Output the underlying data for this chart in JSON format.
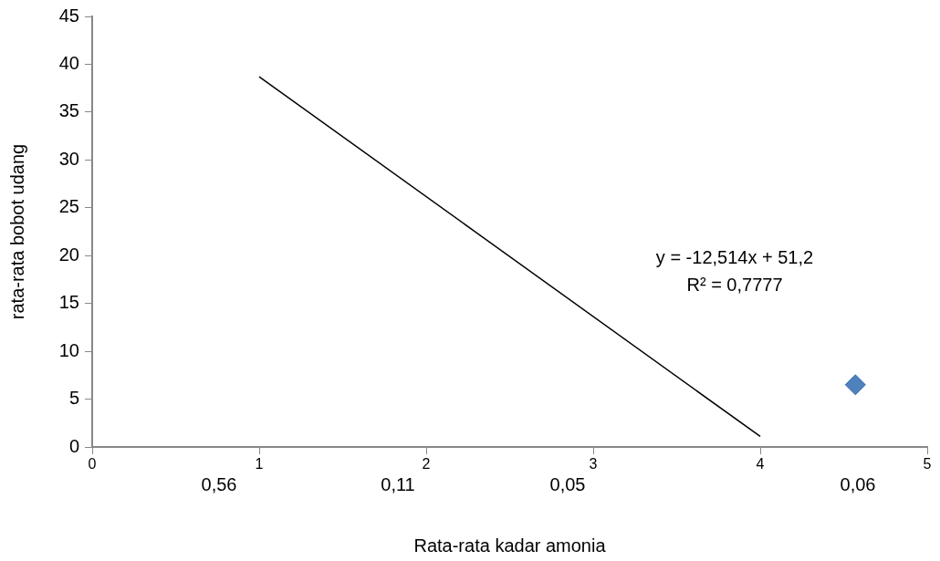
{
  "chart_data": {
    "type": "scatter",
    "xlabel": "Rata-rata kadar amonia",
    "ylabel": "rata-rata bobot udang",
    "xlim": [
      0,
      5
    ],
    "xticks": [
      0,
      1,
      2,
      3,
      4,
      5
    ],
    "ylim": [
      0,
      45
    ],
    "yticks": [
      0,
      5,
      10,
      15,
      20,
      25,
      30,
      35,
      40,
      45
    ],
    "series": [
      {
        "type": "scatter",
        "color": "#4f81bd",
        "x": [
          4.57
        ],
        "values": [
          6.5
        ],
        "marker": "diamond"
      },
      {
        "type": "line",
        "color": "#000000",
        "x": [
          1,
          4
        ],
        "values": [
          38.7,
          1.1
        ],
        "marker": "none",
        "line_style": "solid"
      }
    ],
    "annotations": [
      "y = -12,514x + 51,2",
      "R² = 0,7777",
      "0,56",
      "0,11",
      "0,05",
      "0,06"
    ],
    "grid": false,
    "legend": false
  }
}
